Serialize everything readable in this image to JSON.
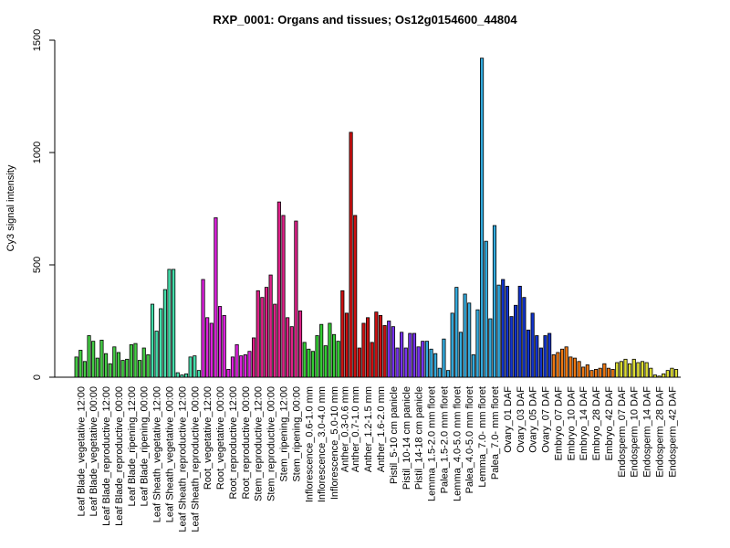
{
  "chart_data": {
    "type": "bar",
    "title": "RXP_0001: Organs and tissues; Os12g0154600_44804",
    "xlabel": "",
    "ylabel": "Cy3 signal intensity",
    "ylim": [
      0,
      1500
    ],
    "yticks": [
      0,
      500,
      1000,
      1500
    ],
    "grid": false,
    "legend": "none",
    "groups": [
      {
        "label": "Leaf Blade_vegetative_12:00",
        "color": "#44cc44",
        "values": [
          90,
          120,
          70
        ]
      },
      {
        "label": "Leaf Blade_vegetative_00:00",
        "color": "#44cc44",
        "values": [
          185,
          160,
          85
        ]
      },
      {
        "label": "Leaf Blade_reproductive_12:00",
        "color": "#44cc44",
        "values": [
          165,
          105,
          60
        ]
      },
      {
        "label": "Leaf Blade_reproductive_00:00",
        "color": "#44cc44",
        "values": [
          135,
          110,
          75
        ]
      },
      {
        "label": "Leaf Blade_ripening_12:00",
        "color": "#44cc44",
        "values": [
          80,
          145,
          150
        ]
      },
      {
        "label": "Leaf Blade_ripening_00:00",
        "color": "#44cc44",
        "values": [
          75,
          130,
          100
        ]
      },
      {
        "label": "Leaf Sheath_vegetative_12:00",
        "color": "#44ddaa",
        "values": [
          325,
          205,
          305
        ]
      },
      {
        "label": "Leaf Sheath_vegetative_00:00",
        "color": "#44ddaa",
        "values": [
          390,
          480,
          480
        ]
      },
      {
        "label": "Leaf Sheath_reproductive_12:00",
        "color": "#44ddaa",
        "values": [
          20,
          10,
          15
        ]
      },
      {
        "label": "Leaf Sheath_reproductive_00:00",
        "color": "#44ddaa",
        "values": [
          90,
          95,
          30
        ]
      },
      {
        "label": "Root_vegetative_12:00",
        "color": "#dd22dd",
        "values": [
          435,
          265,
          240
        ]
      },
      {
        "label": "Root_vegetative_00:00",
        "color": "#dd22dd",
        "values": [
          710,
          315,
          275
        ]
      },
      {
        "label": "Root_reproductive_12:00",
        "color": "#dd22dd",
        "values": [
          35,
          90,
          145
        ]
      },
      {
        "label": "Root_reproductive_00:00",
        "color": "#dd22dd",
        "values": [
          95,
          100,
          115
        ]
      },
      {
        "label": "Stem_reproductive_12:00",
        "color": "#dd2288",
        "values": [
          175,
          385,
          355
        ]
      },
      {
        "label": "Stem_reproductive_00:00",
        "color": "#dd2288",
        "values": [
          400,
          455,
          325
        ]
      },
      {
        "label": "Stem_ripening_12:00",
        "color": "#dd2288",
        "values": [
          780,
          720,
          265
        ]
      },
      {
        "label": "Stem_ripening_00:00",
        "color": "#dd2288",
        "values": [
          225,
          695,
          295
        ]
      },
      {
        "label": "Inflorescence_0.6-1.0 mm",
        "color": "#33cc33",
        "values": [
          155,
          125,
          115
        ]
      },
      {
        "label": "Inflorescence_3.0-4.0 mm",
        "color": "#33cc33",
        "values": [
          185,
          235,
          140
        ]
      },
      {
        "label": "Inflorescence_5.0-10 mm",
        "color": "#33cc33",
        "values": [
          240,
          190,
          160
        ]
      },
      {
        "label": "Anther_0.3-0.6 mm",
        "color": "#cc1111",
        "values": [
          385,
          285
        ]
      },
      {
        "label": "Anther_0.7-1.0 mm",
        "color": "#cc1111",
        "values": [
          1090,
          720,
          130
        ]
      },
      {
        "label": "Anther_1.2-1.5 mm",
        "color": "#cc1111",
        "values": [
          240,
          265,
          155
        ]
      },
      {
        "label": "Anther_1.6-2.0 mm",
        "color": "#cc1111",
        "values": [
          290,
          275,
          230
        ]
      },
      {
        "label": "Pistil_5-10 cm panicle",
        "color": "#7733ee",
        "values": [
          250,
          225,
          130
        ]
      },
      {
        "label": "Pistil_10-14 cm panicle",
        "color": "#7733ee",
        "values": [
          200,
          130,
          195
        ]
      },
      {
        "label": "Pistil_14-18 cm panicle",
        "color": "#7733ee",
        "values": [
          195,
          135,
          160
        ]
      },
      {
        "label": "Lemma_1.5-2.0 mm floret",
        "color": "#33aadd",
        "values": [
          160,
          125,
          105
        ]
      },
      {
        "label": "Palea_1.5-2.0 mm floret",
        "color": "#33aadd",
        "values": [
          40,
          170,
          30
        ]
      },
      {
        "label": "Lemma_4.0-5.0 mm floret",
        "color": "#33aadd",
        "values": [
          285,
          400,
          200
        ]
      },
      {
        "label": "Palea_4.0-5.0 mm floret",
        "color": "#33aadd",
        "values": [
          370,
          330,
          100
        ]
      },
      {
        "label": "Lemma_7.0- mm floret",
        "color": "#33aadd",
        "values": [
          300,
          1420,
          605
        ]
      },
      {
        "label": "Palea_7.0- mm floret",
        "color": "#33aadd",
        "values": [
          260,
          675,
          410
        ]
      },
      {
        "label": "Ovary_01 DAF",
        "color": "#1133cc",
        "values": [
          435,
          405,
          270
        ]
      },
      {
        "label": "Ovary_03 DAF",
        "color": "#1133cc",
        "values": [
          320,
          405,
          355
        ]
      },
      {
        "label": "Ovary_05 DAF",
        "color": "#1133cc",
        "values": [
          210,
          285,
          185
        ]
      },
      {
        "label": "Ovary_07 DAF",
        "color": "#1133cc",
        "values": [
          130,
          185,
          195
        ]
      },
      {
        "label": "Embryo_07 DAF",
        "color": "#ee7711",
        "values": [
          100,
          110,
          125
        ]
      },
      {
        "label": "Embryo_10 DAF",
        "color": "#ee7711",
        "values": [
          135,
          90,
          85
        ]
      },
      {
        "label": "Embryo_14 DAF",
        "color": "#ee7711",
        "values": [
          70,
          45,
          55
        ]
      },
      {
        "label": "Embryo_28 DAF",
        "color": "#ee7711",
        "values": [
          30,
          35,
          40
        ]
      },
      {
        "label": "Embryo_42 DAF",
        "color": "#ee7711",
        "values": [
          60,
          40,
          35
        ]
      },
      {
        "label": "Endosperm_07 DAF",
        "color": "#dddd33",
        "values": [
          65,
          70,
          80
        ]
      },
      {
        "label": "Endosperm_10 DAF",
        "color": "#dddd33",
        "values": [
          60,
          80,
          65
        ]
      },
      {
        "label": "Endosperm_14 DAF",
        "color": "#dddd33",
        "values": [
          70,
          65,
          40
        ]
      },
      {
        "label": "Endosperm_28 DAF",
        "color": "#dddd33",
        "values": [
          10,
          5,
          15
        ]
      },
      {
        "label": "Endosperm_42 DAF",
        "color": "#dddd33",
        "values": [
          30,
          40,
          35
        ]
      }
    ]
  }
}
